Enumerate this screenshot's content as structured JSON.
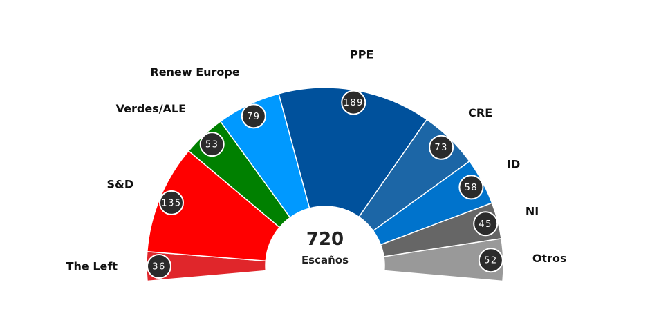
{
  "chart_data": {
    "type": "pie",
    "subtype": "parliament-half-donut",
    "total": "720",
    "total_caption": "Escaños",
    "categories": [
      "The Left",
      "S&D",
      "Verdes/ALE",
      "Renew Europe",
      "PPE",
      "CRE",
      "ID",
      "NI",
      "Otros"
    ],
    "values": [
      36,
      135,
      53,
      79,
      189,
      73,
      58,
      45,
      52
    ],
    "value_labels": [
      "36",
      "135",
      "53",
      "79",
      "189",
      "73",
      "58",
      "45",
      "52"
    ],
    "colors": [
      "#e0262b",
      "#ff0000",
      "#008000",
      "#0099ff",
      "#00519c",
      "#1c66a6",
      "#0073cc",
      "#666666",
      "#999999"
    ]
  }
}
